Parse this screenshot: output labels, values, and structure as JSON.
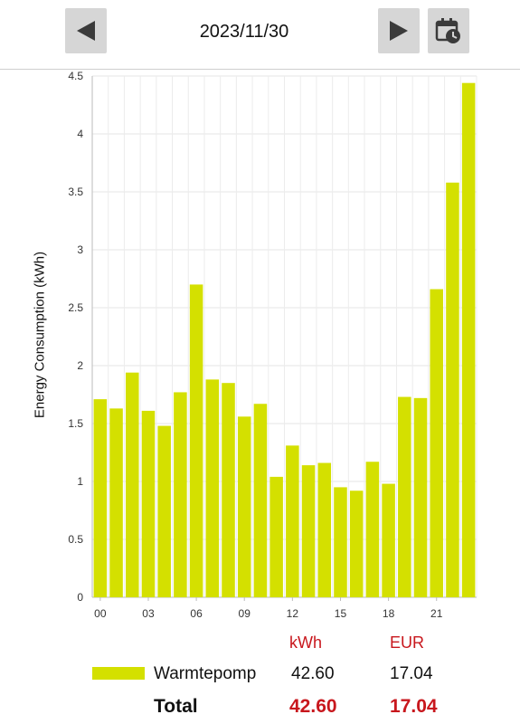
{
  "header": {
    "date": "2023/11/30",
    "prev_icon": "triangle-left-icon",
    "next_icon": "triangle-right-icon",
    "calendar_icon": "calendar-clock-icon"
  },
  "chart_data": {
    "type": "bar",
    "ylabel": "Energy Consumption (kWh)",
    "xlabel": "",
    "ylim": [
      0,
      4.5
    ],
    "yticks": [
      "0",
      "0.5",
      "1",
      "1.5",
      "2",
      "2.5",
      "3",
      "3.5",
      "4",
      "4.5"
    ],
    "xtick_labels": [
      "00",
      "03",
      "06",
      "09",
      "12",
      "15",
      "18",
      "21"
    ],
    "categories": [
      "00",
      "01",
      "02",
      "03",
      "04",
      "05",
      "06",
      "07",
      "08",
      "09",
      "10",
      "11",
      "12",
      "13",
      "14",
      "15",
      "16",
      "17",
      "18",
      "19",
      "20",
      "21",
      "22",
      "23"
    ],
    "grid": true,
    "series": [
      {
        "name": "Warmtepomp",
        "color": "#d4e000",
        "values": [
          1.71,
          1.63,
          1.94,
          1.61,
          1.48,
          1.77,
          2.7,
          1.88,
          1.85,
          1.56,
          1.67,
          1.04,
          1.31,
          1.14,
          1.16,
          0.95,
          0.92,
          1.17,
          0.98,
          1.73,
          1.72,
          2.66,
          3.58,
          4.44
        ]
      }
    ]
  },
  "legend": {
    "col_kwh": "kWh",
    "col_eur": "EUR",
    "rows": [
      {
        "name": "Warmtepomp",
        "kwh": "42.60",
        "eur": "17.04",
        "color": "#d4e000"
      }
    ],
    "total": {
      "label": "Total",
      "kwh": "42.60",
      "eur": "17.04"
    }
  }
}
